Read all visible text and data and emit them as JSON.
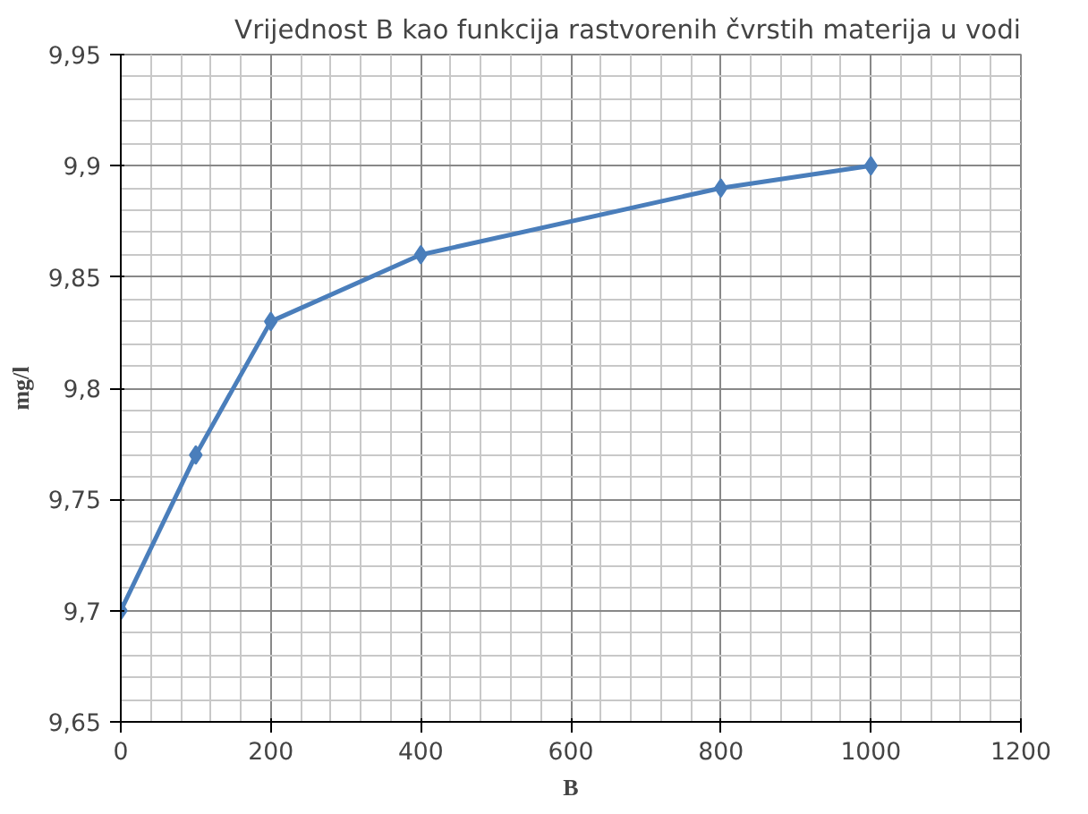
{
  "chart_data": {
    "type": "line",
    "title": "Vrijednost B kao funkcija rastvorenih čvrstih materija u vodi",
    "xlabel": "B",
    "ylabel": "mg/l",
    "x": [
      0,
      100,
      200,
      400,
      800,
      1000
    ],
    "series": [
      {
        "color": "#4a7ebb",
        "values": [
          9.7,
          9.77,
          9.83,
          9.86,
          9.89,
          9.9
        ]
      }
    ],
    "xlim": [
      0,
      1200
    ],
    "xticks": [
      0,
      200,
      400,
      600,
      800,
      1000,
      1200
    ],
    "ylim": [
      9.65,
      9.95
    ],
    "yticks": [
      {
        "value": 9.65,
        "label": "9,65"
      },
      {
        "value": 9.7,
        "label": "9,7"
      },
      {
        "value": 9.75,
        "label": "9,75"
      },
      {
        "value": 9.8,
        "label": "9,8"
      },
      {
        "value": 9.85,
        "label": "9,85"
      },
      {
        "value": 9.9,
        "label": "9,9"
      },
      {
        "value": 9.95,
        "label": "9,95"
      }
    ],
    "grid": true,
    "marker": "diamond",
    "line_style": "solid"
  }
}
